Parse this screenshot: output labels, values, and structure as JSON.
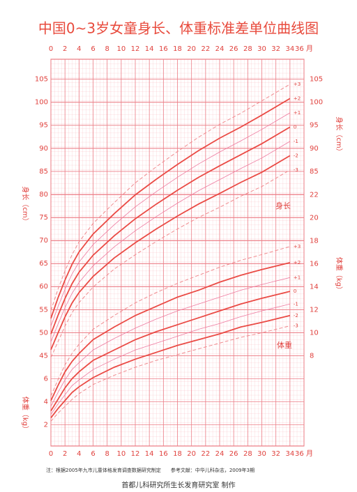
{
  "chart_data": {
    "type": "line",
    "title": "中国0~3岁女童身长、体重标准差单位曲线图",
    "y_label": "身长（cm）",
    "y2_label": "体重（kg）",
    "height_annotation": "身长",
    "weight_annotation": "体重",
    "note": "注：根据2005年九市儿童体格发育调查数据研究制定　　参考文献：中华儿科杂志，2009年3期",
    "footer": "首都儿科研究所生长发育研究室  制作",
    "grid": true,
    "xlim": [
      0,
      36
    ],
    "xticks": [
      0,
      2,
      4,
      6,
      8,
      10,
      12,
      14,
      16,
      18,
      20,
      22,
      24,
      26,
      28,
      30,
      32,
      34,
      {
        "value": 36,
        "label": "36 月"
      }
    ],
    "ylim": [
      44,
      106
    ],
    "yticks": [
      45,
      50,
      55,
      60,
      65,
      70,
      75,
      80,
      85,
      90,
      95,
      100,
      105
    ],
    "yticks_right": [
      85,
      90,
      95,
      100,
      105
    ],
    "y2lim": [
      1,
      23
    ],
    "y2ticks": [
      2,
      4,
      6
    ],
    "y2ticks_right": [
      8,
      10,
      12,
      14,
      16,
      18,
      20,
      22
    ],
    "x": [
      0,
      1,
      2,
      3,
      4,
      6,
      9,
      12,
      15,
      18,
      21,
      24,
      27,
      30,
      34
    ],
    "series": [
      {
        "name": "+3",
        "color": "#f08a8e",
        "line_style": "dashed",
        "axis": "y",
        "values": [
          54.8,
          59.4,
          63.4,
          66.9,
          69.7,
          73.7,
          78.2,
          82.5,
          86.0,
          89.3,
          92.4,
          95.2,
          97.6,
          100.3,
          103.9
        ]
      },
      {
        "name": "+2",
        "color": "#ea4a44",
        "line_style": "bold",
        "axis": "y",
        "values": [
          53.1,
          57.5,
          61.4,
          64.8,
          67.5,
          71.4,
          75.8,
          79.9,
          83.3,
          86.5,
          89.5,
          92.2,
          94.6,
          97.2,
          100.8
        ]
      },
      {
        "name": "+1",
        "color": "#ee7aa0",
        "line_style": "thin",
        "axis": "y",
        "values": [
          51.4,
          55.6,
          59.4,
          62.7,
          65.3,
          69.1,
          73.4,
          77.3,
          80.6,
          83.7,
          86.6,
          89.2,
          91.6,
          94.1,
          97.7
        ]
      },
      {
        "name": "0",
        "color": "#ea4a44",
        "line_style": "bold",
        "axis": "y",
        "values": [
          49.7,
          53.7,
          57.4,
          60.6,
          63.1,
          66.8,
          71.0,
          74.7,
          77.9,
          80.9,
          83.7,
          86.2,
          88.6,
          91.0,
          94.6
        ]
      },
      {
        "name": "-1",
        "color": "#ee7aa0",
        "line_style": "thin",
        "axis": "y",
        "values": [
          48.0,
          51.8,
          55.4,
          58.5,
          60.9,
          64.5,
          68.6,
          72.1,
          75.2,
          78.1,
          80.8,
          83.2,
          85.6,
          87.9,
          91.5
        ]
      },
      {
        "name": "-2",
        "color": "#ea4a44",
        "line_style": "bold",
        "axis": "y",
        "values": [
          46.3,
          49.9,
          53.4,
          56.4,
          58.7,
          62.2,
          66.2,
          69.5,
          72.5,
          75.3,
          77.9,
          80.2,
          82.6,
          84.8,
          88.4
        ]
      },
      {
        "name": "-3",
        "color": "#f08a8e",
        "line_style": "dashed",
        "axis": "y",
        "values": [
          44.6,
          48.0,
          51.4,
          54.3,
          56.5,
          59.9,
          63.8,
          66.9,
          69.8,
          72.5,
          75.0,
          77.2,
          79.6,
          81.7,
          85.3
        ]
      },
      {
        "name": "+3",
        "color": "#f08a8e",
        "line_style": "dashed",
        "axis": "y2",
        "values": [
          4.5,
          5.9,
          7.2,
          8.2,
          9.0,
          10.3,
          11.5,
          12.6,
          13.5,
          14.3,
          15.0,
          15.7,
          16.3,
          16.8,
          17.5
        ]
      },
      {
        "name": "+2",
        "color": "#ea4a44",
        "line_style": "bold",
        "axis": "y2",
        "values": [
          4.1,
          5.4,
          6.6,
          7.5,
          8.2,
          9.4,
          10.5,
          11.5,
          12.3,
          13.1,
          13.7,
          14.4,
          15.0,
          15.5,
          16.1
        ]
      },
      {
        "name": "+1",
        "color": "#ee7aa0",
        "line_style": "thin",
        "axis": "y2",
        "values": [
          3.6,
          4.8,
          5.9,
          6.8,
          7.4,
          8.5,
          9.5,
          10.4,
          11.2,
          11.9,
          12.5,
          13.1,
          13.7,
          14.2,
          14.8
        ]
      },
      {
        "name": "0",
        "color": "#ea4a44",
        "line_style": "bold",
        "axis": "y2",
        "values": [
          3.2,
          4.2,
          5.2,
          6.0,
          6.6,
          7.6,
          8.5,
          9.4,
          10.1,
          10.7,
          11.3,
          11.9,
          12.5,
          13.0,
          13.6
        ]
      },
      {
        "name": "-1",
        "color": "#ee7aa0",
        "line_style": "thin",
        "axis": "y2",
        "values": [
          2.9,
          3.8,
          4.6,
          5.4,
          5.9,
          6.8,
          7.7,
          8.5,
          9.1,
          9.7,
          10.3,
          10.8,
          11.4,
          11.9,
          12.5
        ]
      },
      {
        "name": "-2",
        "color": "#ea4a44",
        "line_style": "bold",
        "axis": "y2",
        "values": [
          2.6,
          3.4,
          4.1,
          4.8,
          5.3,
          6.1,
          7.0,
          7.7,
          8.3,
          8.9,
          9.4,
          9.9,
          10.5,
          10.9,
          11.5
        ]
      },
      {
        "name": "-3",
        "color": "#f08a8e",
        "line_style": "dashed",
        "axis": "y2",
        "values": [
          2.3,
          3.0,
          3.6,
          4.2,
          4.7,
          5.5,
          6.3,
          7.0,
          7.6,
          8.1,
          8.6,
          9.1,
          9.6,
          10.0,
          10.6
        ]
      }
    ]
  }
}
